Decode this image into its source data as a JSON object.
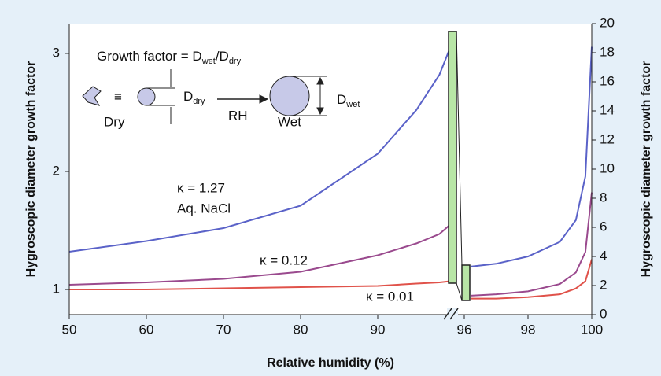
{
  "chart_data": [
    {
      "type": "line",
      "xlabel": "Relative humidity (%)",
      "ylabel": "Hygroscopic diameter growth factor",
      "x": [
        50,
        60,
        70,
        80,
        90,
        95,
        98,
        99.4
      ],
      "xlim": [
        50,
        100
      ],
      "xticks": [
        50,
        60,
        70,
        80,
        90
      ],
      "ylim": [
        0.787,
        3.253
      ],
      "yticks": [
        1,
        2,
        3
      ],
      "series": [
        {
          "name": "κ = 1.27",
          "color": "#5a62c8",
          "values": [
            1.32,
            1.41,
            1.52,
            1.71,
            2.15,
            2.52,
            2.82,
            3.05
          ]
        },
        {
          "name": "κ = 0.12",
          "color": "#9a4a8e",
          "values": [
            1.04,
            1.06,
            1.09,
            1.15,
            1.29,
            1.39,
            1.47,
            1.55
          ]
        },
        {
          "name": "κ = 0.01",
          "color": "#e0524a",
          "values": [
            1.0,
            1.0,
            1.01,
            1.02,
            1.03,
            1.05,
            1.06,
            1.07
          ]
        }
      ],
      "annotations": [
        "Aq. NaCl"
      ]
    },
    {
      "type": "line",
      "y2label": "Hygroscopic diameter growth factor",
      "x": [
        96.2,
        97,
        98,
        99,
        99.5,
        99.8,
        100
      ],
      "xlim": [
        96,
        100
      ],
      "xticks": [
        96,
        98,
        100
      ],
      "y2lim": [
        0,
        20
      ],
      "y2ticks": [
        0,
        2,
        4,
        6,
        8,
        10,
        12,
        14,
        16,
        18,
        20
      ],
      "series": [
        {
          "axis": "y2",
          "color": "#5a62c8",
          "values": [
            3.3,
            3.5,
            4.0,
            5.0,
            6.5,
            9.5,
            18.4
          ]
        },
        {
          "axis": "y2",
          "color": "#9a4a8e",
          "values": [
            1.3,
            1.4,
            1.6,
            2.1,
            2.9,
            4.3,
            8.4
          ]
        },
        {
          "axis": "y2",
          "color": "#e0524a",
          "values": [
            1.1,
            1.1,
            1.2,
            1.4,
            1.8,
            2.3,
            3.8
          ]
        }
      ]
    }
  ],
  "inset": {
    "formula": [
      "Growth factor = D",
      "wet",
      "/D",
      "dry"
    ],
    "equiv": "≡",
    "dry": "Dry",
    "d_dry": [
      "D",
      "dry"
    ],
    "rh": "RH",
    "wet": "Wet",
    "d_wet": [
      "D",
      "wet"
    ]
  }
}
